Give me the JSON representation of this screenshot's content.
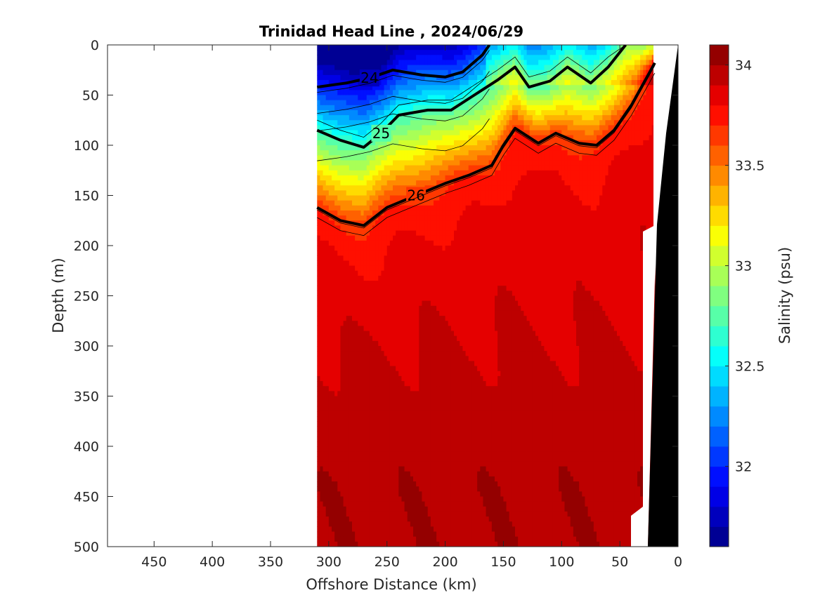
{
  "chart_data": {
    "type": "heatmap",
    "title": "Trinidad Head Line , 2024/06/29",
    "xlabel": "Offshore Distance (km)",
    "ylabel": "Depth (m)",
    "xlim": [
      490,
      0
    ],
    "ylim": [
      0,
      500
    ],
    "x_reversed": true,
    "y_reversed": true,
    "xticks": [
      450,
      400,
      350,
      300,
      250,
      200,
      150,
      100,
      50,
      0
    ],
    "yticks": [
      0,
      50,
      100,
      150,
      200,
      250,
      300,
      350,
      400,
      450,
      500
    ],
    "colorbar": {
      "label": "Salinity (psu)",
      "range": [
        31.6,
        34.1
      ],
      "ticks": [
        32,
        32.5,
        33,
        33.5,
        34
      ],
      "colormap": "jet",
      "bins": 25
    },
    "data_extent_km": [
      310,
      20
    ],
    "density_contours": [
      {
        "level": 24,
        "label": "24",
        "points": [
          [
            310,
            42
          ],
          [
            285,
            38
          ],
          [
            265,
            33
          ],
          [
            245,
            25
          ],
          [
            220,
            30
          ],
          [
            200,
            32
          ],
          [
            185,
            27
          ],
          [
            168,
            10
          ],
          [
            162,
            0
          ]
        ]
      },
      {
        "level": 25,
        "label": "25",
        "points": [
          [
            310,
            85
          ],
          [
            290,
            95
          ],
          [
            270,
            102
          ],
          [
            255,
            88
          ],
          [
            240,
            70
          ],
          [
            215,
            65
          ],
          [
            195,
            65
          ],
          [
            175,
            50
          ],
          [
            155,
            35
          ],
          [
            140,
            22
          ],
          [
            128,
            42
          ],
          [
            110,
            36
          ],
          [
            95,
            22
          ],
          [
            75,
            38
          ],
          [
            60,
            22
          ],
          [
            45,
            0
          ]
        ]
      },
      {
        "level": 26,
        "label": "26",
        "points": [
          [
            310,
            162
          ],
          [
            290,
            175
          ],
          [
            270,
            180
          ],
          [
            250,
            162
          ],
          [
            225,
            150
          ],
          [
            200,
            138
          ],
          [
            180,
            130
          ],
          [
            160,
            120
          ],
          [
            150,
            100
          ],
          [
            140,
            83
          ],
          [
            120,
            98
          ],
          [
            105,
            88
          ],
          [
            85,
            98
          ],
          [
            70,
            100
          ],
          [
            55,
            85
          ],
          [
            40,
            60
          ],
          [
            20,
            18
          ]
        ]
      }
    ]
  }
}
